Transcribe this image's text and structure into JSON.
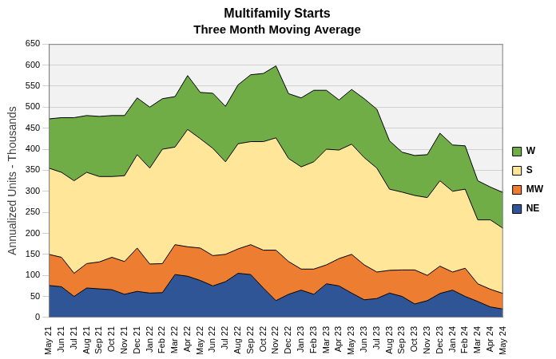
{
  "chart_data": {
    "type": "area",
    "title": "Multifamily Starts",
    "subtitle": "Three Month Moving Average",
    "y_label": "Annualized Units - Thousands",
    "categories": [
      "May 21",
      "Jun 21",
      "Jul 21",
      "Aug 21",
      "Sep 21",
      "Oct 21",
      "Nov 21",
      "Dec 21",
      "Jan 22",
      "Feb 22",
      "Mar 22",
      "Apr 22",
      "May 22",
      "Jun 22",
      "Jul 22",
      "Aug 22",
      "Sep 22",
      "Oct 22",
      "Nov 22",
      "Dec 22",
      "Jan 23",
      "Feb 23",
      "Mar 23",
      "Apr 23",
      "May 23",
      "Jun 23",
      "Jul 23",
      "Aug 23",
      "Sep 23",
      "Oct 23",
      "Nov 23",
      "Dec 23",
      "Jan 24",
      "Feb 24",
      "Mar 24",
      "Apr 24",
      "May 24"
    ],
    "series": [
      {
        "name": "NE",
        "color": "#2f5597",
        "values": [
          76,
          73,
          50,
          70,
          68,
          66,
          55,
          62,
          58,
          59,
          102,
          98,
          88,
          75,
          85,
          105,
          102,
          70,
          40,
          55,
          65,
          55,
          80,
          75,
          58,
          42,
          45,
          58,
          50,
          32,
          40,
          57,
          65,
          50,
          38,
          25,
          20
        ]
      },
      {
        "name": "MW",
        "color": "#ed7d31",
        "values": [
          74,
          70,
          55,
          58,
          64,
          77,
          78,
          103,
          69,
          69,
          71,
          70,
          77,
          72,
          65,
          58,
          71,
          90,
          120,
          78,
          50,
          60,
          45,
          65,
          92,
          83,
          63,
          54,
          63,
          81,
          60,
          65,
          43,
          67,
          42,
          42,
          37
        ]
      },
      {
        "name": "S",
        "color": "#ffe699",
        "values": [
          205,
          202,
          220,
          217,
          203,
          192,
          204,
          222,
          228,
          272,
          232,
          279,
          260,
          255,
          220,
          250,
          245,
          258,
          267,
          245,
          243,
          255,
          275,
          258,
          262,
          255,
          247,
          193,
          185,
          177,
          185,
          203,
          192,
          188,
          152,
          165,
          155
        ]
      },
      {
        "name": "W",
        "color": "#70ad47",
        "values": [
          117,
          130,
          150,
          135,
          143,
          145,
          143,
          135,
          145,
          120,
          120,
          128,
          110,
          131,
          132,
          140,
          159,
          162,
          171,
          154,
          164,
          170,
          140,
          119,
          130,
          140,
          140,
          115,
          95,
          95,
          102,
          113,
          110,
          103,
          93,
          78,
          85
        ]
      }
    ],
    "ylim": [
      0,
      650
    ],
    "yticks": [
      0,
      50,
      100,
      150,
      200,
      250,
      300,
      350,
      400,
      450,
      500,
      550,
      600,
      650
    ],
    "grid": true,
    "stacked": true,
    "legend": "right"
  }
}
